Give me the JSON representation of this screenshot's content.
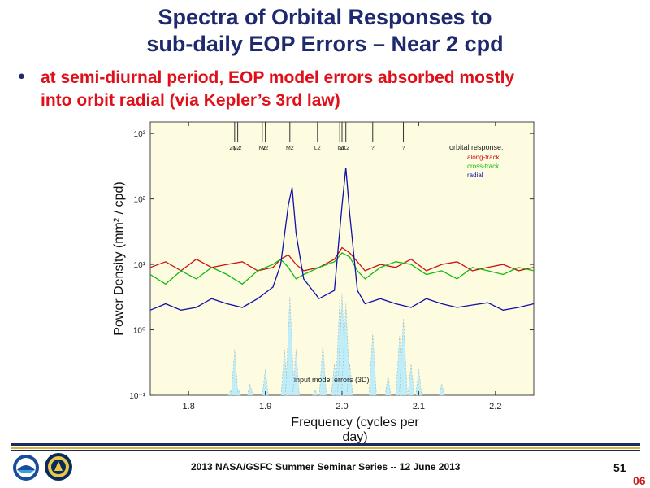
{
  "slide": {
    "title_line1": "Spectra of Orbital Responses to",
    "title_line2": "sub-daily EOP Errors – Near 2 cpd",
    "bullet_line1": "at semi-diurnal period, EOP model errors absorbed mostly",
    "bullet_line2": "into orbit radial (via Kepler’s 3rd law)",
    "footer": "2013 NASA/GSFC Summer Seminar Series -- 12 June 2013",
    "page_number": "51",
    "page_suffix": "06"
  },
  "logos": [
    {
      "name": "noaa-logo",
      "colors": [
        "#1a4c9c",
        "#ffffff",
        "#3aa0d8"
      ]
    },
    {
      "name": "ngs-logo",
      "colors": [
        "#0b2a5c",
        "#e8c84a",
        "#ffffff"
      ]
    }
  ],
  "chart_data": {
    "type": "line",
    "xlabel": "Frequency (cycles per day)",
    "ylabel": "Power Density  (mm² / cpd)",
    "xlim": [
      1.75,
      2.25
    ],
    "ylim": [
      0.1,
      1500
    ],
    "yscale": "log",
    "x_ticks": [
      "1.8",
      "1.9",
      "2.0",
      "2.1",
      "2.2"
    ],
    "y_ticks": [
      "10⁻¹",
      "10⁰",
      "10¹",
      "10²",
      "10³"
    ],
    "background": "#fdfbe0",
    "legend_title": "orbital response:",
    "legend_position": "top-right",
    "tide_labels": [
      {
        "label": "2N2",
        "x": 1.86
      },
      {
        "label": "μ 2",
        "x": 1.864
      },
      {
        "label": "N2",
        "x": 1.896
      },
      {
        "label": "ν2",
        "x": 1.9
      },
      {
        "label": "M2",
        "x": 1.932
      },
      {
        "label": "L2",
        "x": 1.968
      },
      {
        "label": "T2",
        "x": 1.997
      },
      {
        "label": "S2",
        "x": 2.0
      },
      {
        "label": "K2",
        "x": 2.005
      },
      {
        "label": "?",
        "x": 2.04
      },
      {
        "label": "?",
        "x": 2.08
      }
    ],
    "input_label": "input model errors (3D)",
    "series": [
      {
        "name": "along-track",
        "color": "#cc1111",
        "x": [
          1.75,
          1.77,
          1.79,
          1.81,
          1.83,
          1.85,
          1.87,
          1.89,
          1.91,
          1.92,
          1.93,
          1.94,
          1.95,
          1.97,
          1.99,
          2.0,
          2.01,
          2.02,
          2.03,
          2.05,
          2.07,
          2.09,
          2.11,
          2.13,
          2.15,
          2.17,
          2.19,
          2.21,
          2.23,
          2.25
        ],
        "values": [
          9,
          11,
          8,
          12,
          9,
          10,
          11,
          8,
          9,
          12,
          14,
          10,
          8,
          9,
          12,
          18,
          15,
          11,
          8,
          10,
          9,
          12,
          8,
          10,
          11,
          8,
          9,
          10,
          8,
          9
        ]
      },
      {
        "name": "cross-track",
        "color": "#11bb11",
        "x": [
          1.75,
          1.77,
          1.79,
          1.81,
          1.83,
          1.85,
          1.87,
          1.89,
          1.91,
          1.92,
          1.93,
          1.94,
          1.95,
          1.97,
          1.99,
          2.0,
          2.01,
          2.02,
          2.03,
          2.05,
          2.07,
          2.09,
          2.11,
          2.13,
          2.15,
          2.17,
          2.19,
          2.21,
          2.23,
          2.25
        ],
        "values": [
          7,
          5,
          8,
          6,
          9,
          7,
          5,
          8,
          10,
          12,
          9,
          6,
          7,
          9,
          11,
          15,
          13,
          8,
          6,
          9,
          11,
          10,
          7,
          8,
          6,
          9,
          8,
          7,
          9,
          8
        ]
      },
      {
        "name": "radial",
        "color": "#1111aa",
        "x": [
          1.75,
          1.77,
          1.79,
          1.81,
          1.83,
          1.85,
          1.87,
          1.89,
          1.91,
          1.92,
          1.93,
          1.935,
          1.94,
          1.95,
          1.97,
          1.99,
          2.0,
          2.005,
          2.01,
          2.02,
          2.03,
          2.05,
          2.07,
          2.09,
          2.11,
          2.13,
          2.15,
          2.17,
          2.19,
          2.21,
          2.23,
          2.25
        ],
        "values": [
          2,
          2.5,
          2,
          2.2,
          3,
          2.5,
          2.2,
          3,
          4.5,
          10,
          80,
          150,
          30,
          6,
          3,
          4,
          80,
          300,
          60,
          4,
          2.5,
          3,
          2.5,
          2.2,
          3,
          2.5,
          2.2,
          2.4,
          2.6,
          2,
          2.2,
          2.5
        ]
      },
      {
        "name": "input model errors (3D)",
        "color": "#bfeef8",
        "x": [
          1.855,
          1.86,
          1.865,
          1.88,
          1.9,
          1.925,
          1.932,
          1.94,
          1.965,
          1.975,
          1.99,
          1.997,
          2.0,
          2.005,
          2.01,
          2.04,
          2.06,
          2.075,
          2.08,
          2.09,
          2.1,
          2.13
        ],
        "values": [
          0.12,
          0.5,
          0.12,
          0.15,
          0.25,
          0.5,
          3.2,
          0.5,
          0.12,
          0.6,
          0.3,
          2.8,
          3.5,
          2.5,
          0.3,
          0.9,
          0.2,
          0.8,
          1.5,
          0.3,
          0.25,
          0.15
        ]
      }
    ]
  }
}
